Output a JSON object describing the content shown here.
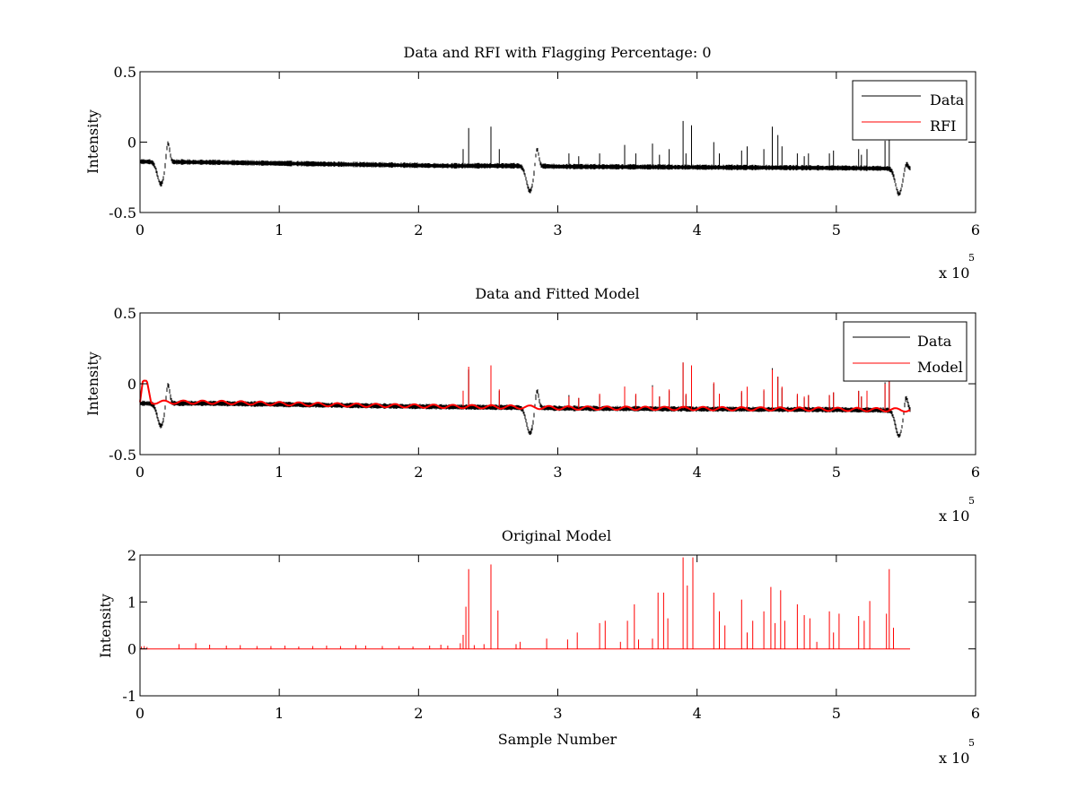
{
  "window": {
    "background": "#ffffff"
  },
  "colors": {
    "data": "#000000",
    "rfi": "#ff0000",
    "model": "#ff0000",
    "axes": "#000000"
  },
  "chart_data": [
    {
      "id": "panel1",
      "type": "line",
      "title": "Data and RFI with Flagging Percentage: 0",
      "xlabel": "",
      "ylabel": "Intensity",
      "xlim": [
        0,
        600000
      ],
      "ylim": [
        -0.5,
        0.5
      ],
      "xticks": [
        0,
        100000,
        200000,
        300000,
        400000,
        500000,
        600000
      ],
      "xtick_labels": [
        "0",
        "1",
        "2",
        "3",
        "4",
        "5",
        "6"
      ],
      "yticks": [
        -0.5,
        0,
        0.5
      ],
      "ytick_labels": [
        "-0.5",
        "0",
        "0.5"
      ],
      "x_exponent": {
        "base": "x 10",
        "exp": "5"
      },
      "grid": false,
      "legend": {
        "placement": "top-right",
        "entries": [
          {
            "name": "Data",
            "color": "#000000"
          },
          {
            "name": "RFI",
            "color": "#ff0000"
          }
        ]
      },
      "x_extent": [
        0,
        553000
      ],
      "series": [
        {
          "name": "Data",
          "color": "#000000",
          "baseline": [
            [
              0,
              -0.14
            ],
            [
              50000,
              -0.145
            ],
            [
              150000,
              -0.16
            ],
            [
              220000,
              -0.17
            ],
            [
              280000,
              -0.17
            ],
            [
              300000,
              -0.175
            ],
            [
              400000,
              -0.18
            ],
            [
              500000,
              -0.185
            ],
            [
              553000,
              -0.19
            ]
          ],
          "noise": 0.04,
          "dips": [
            {
              "x": 15000,
              "depth": -0.3,
              "width": 3500,
              "recovery_x": 20000,
              "recovery_y": 0.01
            },
            {
              "x": 280000,
              "depth": -0.35,
              "width": 3500,
              "recovery_x": 285000,
              "recovery_y": -0.03
            },
            {
              "x": 545000,
              "depth": -0.37,
              "width": 3500,
              "recovery_x": 550000,
              "recovery_y": -0.14
            }
          ],
          "spikes": [
            [
              232000,
              -0.05
            ],
            [
              236000,
              0.1
            ],
            [
              252000,
              0.11
            ],
            [
              258000,
              -0.05
            ],
            [
              308000,
              -0.08
            ],
            [
              315000,
              -0.1
            ],
            [
              330000,
              -0.08
            ],
            [
              348000,
              -0.02
            ],
            [
              356000,
              -0.08
            ],
            [
              368000,
              -0.01
            ],
            [
              373000,
              -0.09
            ],
            [
              380000,
              -0.05
            ],
            [
              390000,
              0.15
            ],
            [
              392000,
              -0.08
            ],
            [
              396000,
              0.12
            ],
            [
              412000,
              0.0
            ],
            [
              416000,
              -0.08
            ],
            [
              432000,
              -0.06
            ],
            [
              436000,
              -0.03
            ],
            [
              448000,
              -0.05
            ],
            [
              454000,
              0.11
            ],
            [
              458000,
              0.05
            ],
            [
              461000,
              -0.03
            ],
            [
              472000,
              -0.08
            ],
            [
              477000,
              -0.1
            ],
            [
              480000,
              -0.08
            ],
            [
              495000,
              -0.08
            ],
            [
              498000,
              -0.06
            ],
            [
              516000,
              -0.05
            ],
            [
              518000,
              -0.09
            ],
            [
              522000,
              -0.05
            ],
            [
              535000,
              0.01
            ],
            [
              538000,
              0.09
            ]
          ]
        },
        {
          "name": "RFI",
          "color": "#ff0000",
          "points": []
        }
      ]
    },
    {
      "id": "panel2",
      "type": "line",
      "title": "Data and Fitted Model",
      "xlabel": "",
      "ylabel": "Intensity",
      "xlim": [
        0,
        600000
      ],
      "ylim": [
        -0.5,
        0.5
      ],
      "xticks": [
        0,
        100000,
        200000,
        300000,
        400000,
        500000,
        600000
      ],
      "xtick_labels": [
        "0",
        "1",
        "2",
        "3",
        "4",
        "5",
        "6"
      ],
      "yticks": [
        -0.5,
        0,
        0.5
      ],
      "ytick_labels": [
        "-0.5",
        "0",
        "0.5"
      ],
      "x_exponent": {
        "base": "x 10",
        "exp": "5"
      },
      "grid": false,
      "legend": {
        "placement": "top-right",
        "entries": [
          {
            "name": "Data",
            "color": "#000000"
          },
          {
            "name": "Model",
            "color": "#ff0000"
          }
        ]
      },
      "x_extent": [
        0,
        553000
      ],
      "series": [
        {
          "name": "Data",
          "color": "#000000",
          "baseline": [
            [
              0,
              -0.14
            ],
            [
              50000,
              -0.14
            ],
            [
              150000,
              -0.155
            ],
            [
              220000,
              -0.165
            ],
            [
              280000,
              -0.17
            ],
            [
              300000,
              -0.175
            ],
            [
              400000,
              -0.18
            ],
            [
              500000,
              -0.185
            ],
            [
              553000,
              -0.19
            ]
          ],
          "noise": 0.04,
          "dips": [
            {
              "x": 15000,
              "depth": -0.3,
              "width": 3500,
              "recovery_x": 20000,
              "recovery_y": 0.01
            },
            {
              "x": 280000,
              "depth": -0.35,
              "width": 3500,
              "recovery_x": 285000,
              "recovery_y": -0.03
            },
            {
              "x": 545000,
              "depth": -0.37,
              "width": 3500,
              "recovery_x": 550000,
              "recovery_y": -0.08
            }
          ],
          "spikes": [
            [
              232000,
              -0.05
            ],
            [
              236000,
              0.1
            ],
            [
              252000,
              0.11
            ],
            [
              258000,
              -0.05
            ],
            [
              308000,
              -0.08
            ],
            [
              315000,
              -0.1
            ],
            [
              330000,
              -0.08
            ],
            [
              348000,
              -0.02
            ],
            [
              356000,
              -0.08
            ],
            [
              368000,
              -0.01
            ],
            [
              373000,
              -0.09
            ],
            [
              380000,
              -0.05
            ],
            [
              390000,
              0.15
            ],
            [
              392000,
              -0.08
            ],
            [
              396000,
              0.12
            ],
            [
              412000,
              0.0
            ],
            [
              416000,
              -0.08
            ],
            [
              432000,
              -0.06
            ],
            [
              436000,
              -0.03
            ],
            [
              448000,
              -0.05
            ],
            [
              454000,
              0.11
            ],
            [
              458000,
              0.05
            ],
            [
              461000,
              -0.03
            ],
            [
              472000,
              -0.08
            ],
            [
              477000,
              -0.1
            ],
            [
              480000,
              -0.08
            ],
            [
              495000,
              -0.08
            ],
            [
              498000,
              -0.06
            ],
            [
              516000,
              -0.05
            ],
            [
              518000,
              -0.09
            ],
            [
              522000,
              -0.05
            ],
            [
              535000,
              0.01
            ],
            [
              538000,
              0.09
            ]
          ]
        },
        {
          "name": "Model",
          "color": "#ff0000",
          "baseline": [
            [
              0,
              -0.13
            ],
            [
              2000,
              0.01
            ],
            [
              5000,
              0.01
            ],
            [
              8000,
              -0.13
            ],
            [
              50000,
              -0.13
            ],
            [
              150000,
              -0.15
            ],
            [
              220000,
              -0.16
            ],
            [
              280000,
              -0.165
            ],
            [
              300000,
              -0.17
            ],
            [
              400000,
              -0.175
            ],
            [
              500000,
              -0.18
            ],
            [
              553000,
              -0.185
            ]
          ],
          "ripple": 0.012,
          "spikes": [
            [
              232000,
              -0.05
            ],
            [
              236000,
              0.12
            ],
            [
              252000,
              0.13
            ],
            [
              258000,
              -0.04
            ],
            [
              308000,
              -0.09
            ],
            [
              315000,
              -0.1
            ],
            [
              330000,
              -0.07
            ],
            [
              348000,
              -0.02
            ],
            [
              356000,
              -0.07
            ],
            [
              368000,
              -0.02
            ],
            [
              373000,
              -0.09
            ],
            [
              380000,
              -0.04
            ],
            [
              390000,
              0.15
            ],
            [
              392000,
              -0.07
            ],
            [
              396000,
              0.13
            ],
            [
              412000,
              0.01
            ],
            [
              416000,
              -0.07
            ],
            [
              432000,
              -0.05
            ],
            [
              436000,
              -0.02
            ],
            [
              448000,
              -0.04
            ],
            [
              454000,
              0.1
            ],
            [
              458000,
              0.05
            ],
            [
              461000,
              -0.02
            ],
            [
              472000,
              -0.07
            ],
            [
              477000,
              -0.09
            ],
            [
              480000,
              -0.08
            ],
            [
              495000,
              -0.08
            ],
            [
              498000,
              -0.06
            ],
            [
              516000,
              -0.05
            ],
            [
              518000,
              -0.09
            ],
            [
              522000,
              -0.05
            ],
            [
              535000,
              0.0
            ],
            [
              538000,
              0.08
            ]
          ]
        }
      ]
    },
    {
      "id": "panel3",
      "type": "line",
      "title": "Original Model",
      "xlabel": "Sample Number",
      "ylabel": "Intensity",
      "xlim": [
        0,
        600000
      ],
      "ylim": [
        -1,
        2
      ],
      "xticks": [
        0,
        100000,
        200000,
        300000,
        400000,
        500000,
        600000
      ],
      "xtick_labels": [
        "0",
        "1",
        "2",
        "3",
        "4",
        "5",
        "6"
      ],
      "yticks": [
        -1,
        0,
        1,
        2
      ],
      "ytick_labels": [
        "-1",
        "0",
        "1",
        "2"
      ],
      "x_exponent": {
        "base": "x 10",
        "exp": "5"
      },
      "grid": false,
      "legend": null,
      "x_extent": [
        0,
        553000
      ],
      "series": [
        {
          "name": "Model",
          "color": "#ff0000",
          "baseline_value": 0.0,
          "spikes": [
            [
              1000,
              0.05
            ],
            [
              3000,
              0.06
            ],
            [
              5000,
              0.04
            ],
            [
              28000,
              0.1
            ],
            [
              40000,
              0.12
            ],
            [
              50000,
              0.09
            ],
            [
              62000,
              0.07
            ],
            [
              72000,
              0.08
            ],
            [
              84000,
              0.06
            ],
            [
              94000,
              0.06
            ],
            [
              104000,
              0.07
            ],
            [
              114000,
              0.05
            ],
            [
              124000,
              0.06
            ],
            [
              134000,
              0.07
            ],
            [
              144000,
              0.06
            ],
            [
              155000,
              0.08
            ],
            [
              162000,
              0.07
            ],
            [
              174000,
              0.06
            ],
            [
              186000,
              0.06
            ],
            [
              196000,
              0.05
            ],
            [
              208000,
              0.07
            ],
            [
              216000,
              0.09
            ],
            [
              221000,
              0.07
            ],
            [
              230000,
              0.12
            ],
            [
              232000,
              0.3
            ],
            [
              234000,
              0.9
            ],
            [
              236000,
              1.7
            ],
            [
              240000,
              0.08
            ],
            [
              247000,
              0.1
            ],
            [
              252000,
              1.8
            ],
            [
              257000,
              0.82
            ],
            [
              270000,
              0.1
            ],
            [
              273000,
              0.15
            ],
            [
              292000,
              0.22
            ],
            [
              307000,
              0.2
            ],
            [
              314000,
              0.35
            ],
            [
              330000,
              0.55
            ],
            [
              334000,
              0.6
            ],
            [
              345000,
              0.15
            ],
            [
              350000,
              0.6
            ],
            [
              355000,
              0.95
            ],
            [
              358000,
              0.2
            ],
            [
              368000,
              0.22
            ],
            [
              372000,
              1.2
            ],
            [
              376000,
              1.2
            ],
            [
              379000,
              0.65
            ],
            [
              390000,
              1.95
            ],
            [
              393000,
              1.35
            ],
            [
              397000,
              1.95
            ],
            [
              412000,
              1.2
            ],
            [
              416000,
              0.8
            ],
            [
              420000,
              0.5
            ],
            [
              432000,
              1.05
            ],
            [
              436000,
              0.35
            ],
            [
              440000,
              0.6
            ],
            [
              448000,
              0.8
            ],
            [
              453000,
              1.32
            ],
            [
              456000,
              0.55
            ],
            [
              460000,
              1.25
            ],
            [
              463000,
              0.6
            ],
            [
              472000,
              0.95
            ],
            [
              477000,
              0.72
            ],
            [
              481000,
              0.65
            ],
            [
              486000,
              0.15
            ],
            [
              495000,
              0.8
            ],
            [
              498000,
              0.35
            ],
            [
              502000,
              0.75
            ],
            [
              516000,
              0.7
            ],
            [
              520000,
              0.6
            ],
            [
              524000,
              1.02
            ],
            [
              536000,
              0.75
            ],
            [
              538000,
              1.7
            ],
            [
              541000,
              0.45
            ]
          ]
        }
      ]
    }
  ]
}
